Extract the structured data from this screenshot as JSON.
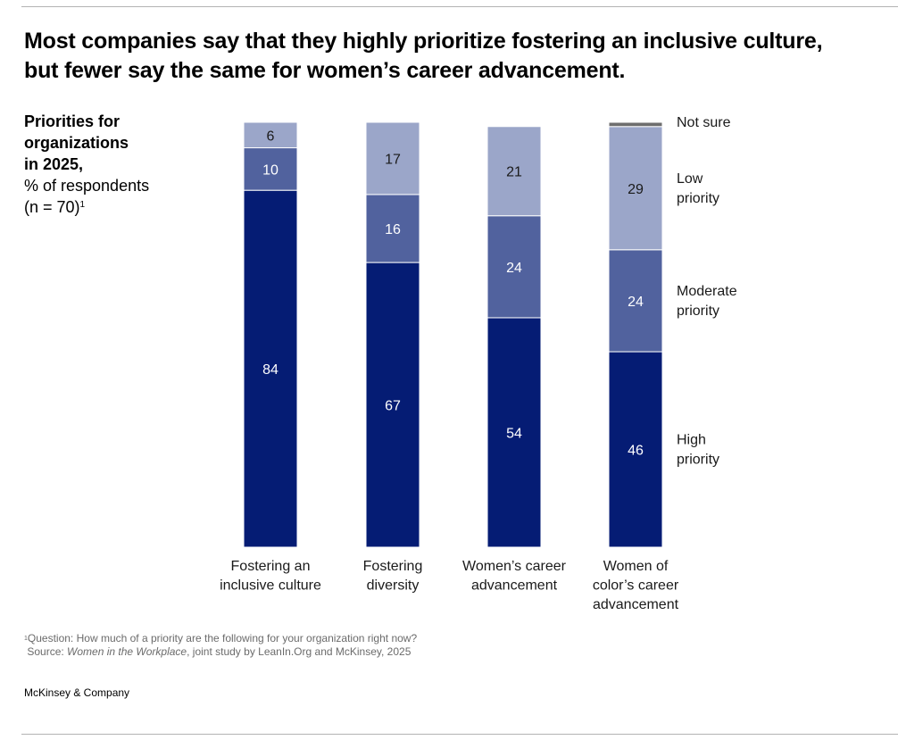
{
  "title": "Most companies say that they highly prioritize fostering an inclusive culture, but fewer say the same for women’s career advancement.",
  "subtitle": {
    "bold_lines": [
      "Priorities for",
      "organizations",
      "in 2025,"
    ],
    "lines": [
      "% of respondents",
      "(n = 70)"
    ],
    "footnote_marker": "1"
  },
  "chart_data": {
    "type": "bar",
    "stacked": true,
    "orientation": "vertical",
    "title": "Priorities for organizations in 2025, % of respondents (n = 70)",
    "xlabel": "",
    "ylabel": "% of respondents",
    "ylim": [
      0,
      100
    ],
    "grid": false,
    "legend_placement": "right",
    "categories": [
      [
        "Fostering an",
        "inclusive culture"
      ],
      [
        "Fostering",
        "diversity"
      ],
      [
        "Women’s career",
        "advancement"
      ],
      [
        "Women of",
        "color’s career",
        "advancement"
      ]
    ],
    "series": [
      {
        "name": "High priority",
        "legend": [
          "High",
          "priority"
        ],
        "color": "#051c74",
        "label_color": "#ffffff",
        "values": [
          84,
          67,
          54,
          46
        ]
      },
      {
        "name": "Moderate priority",
        "legend": [
          "Moderate",
          "priority"
        ],
        "color": "#51629e",
        "label_color": "#ffffff",
        "values": [
          10,
          16,
          24,
          24
        ]
      },
      {
        "name": "Low priority",
        "legend": [
          "Low",
          "priority"
        ],
        "color": "#9ba6c9",
        "label_color": "#1a1a1a",
        "values": [
          6,
          17,
          21,
          29
        ]
      },
      {
        "name": "Not sure",
        "legend": [
          "Not sure"
        ],
        "color": "#6e6e6e",
        "label_color": "#1a1a1a",
        "values": [
          0,
          0,
          0,
          1
        ],
        "show_labels": false
      }
    ]
  },
  "footnote": {
    "marker": "1",
    "question": "Question: How much of a priority are the following for your organization right now?",
    "source_prefix": "Source: ",
    "source_title": "Women in the Workplace",
    "source_suffix": ", joint study by LeanIn.Org and McKinsey, 2025"
  },
  "brand": "McKinsey & Company"
}
